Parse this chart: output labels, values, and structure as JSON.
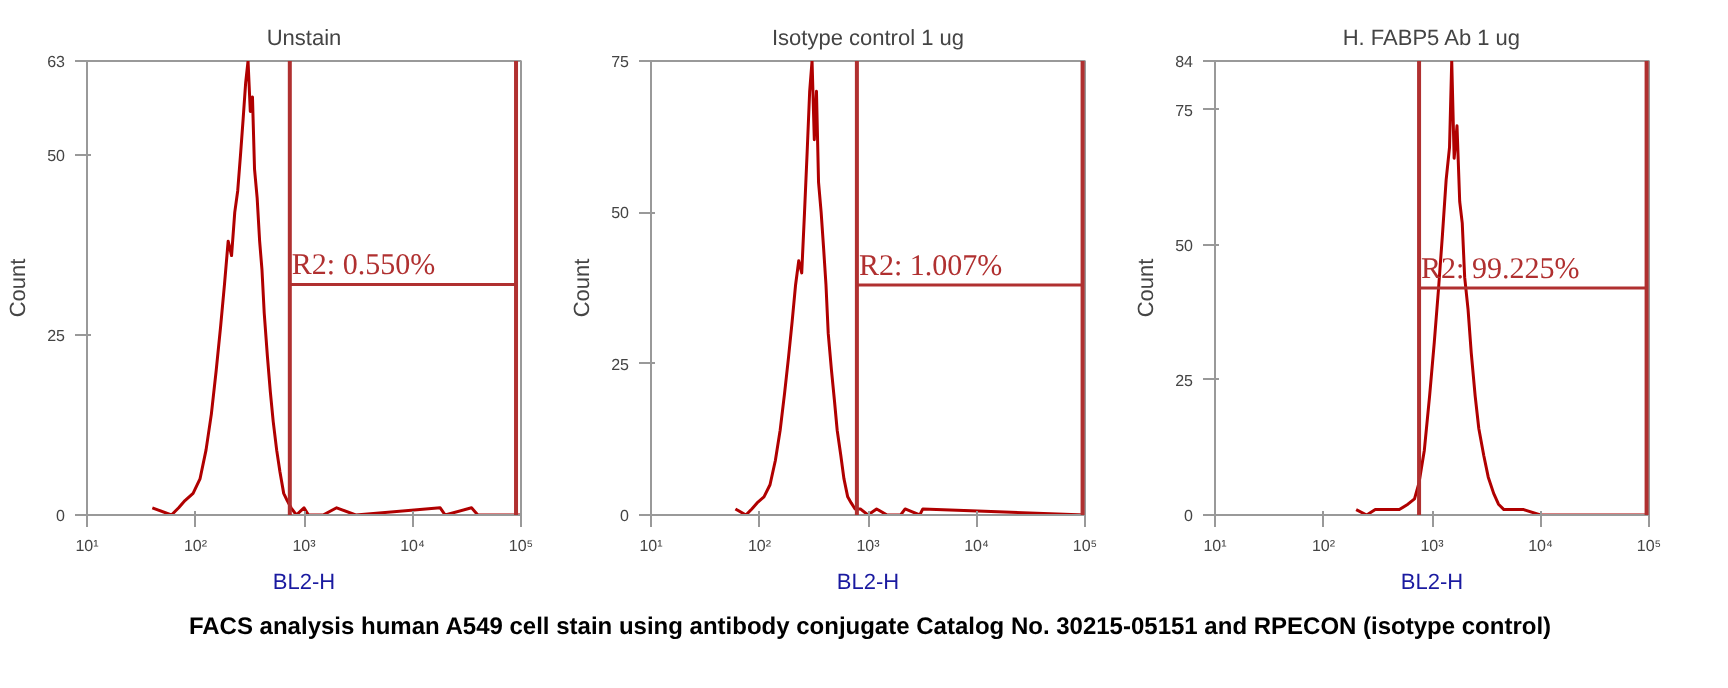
{
  "chart_data": [
    {
      "type": "line",
      "title": "Unstain",
      "xlabel": "BL2-H",
      "ylabel": "Count",
      "log": "x",
      "grid": false,
      "xlim": [
        10,
        100000
      ],
      "xticks": [
        {
          "value": 10,
          "label": "10¹"
        },
        {
          "value": 100,
          "label": "10²"
        },
        {
          "value": 1000,
          "label": "10³"
        },
        {
          "value": 10000,
          "label": "10⁴"
        },
        {
          "value": 100000,
          "label": "10⁵"
        }
      ],
      "ylim": [
        0,
        63
      ],
      "yticks": [
        0,
        25,
        50,
        63
      ],
      "series": [
        {
          "color": "#b00000",
          "x": [
            40,
            60,
            70,
            80,
            95,
            110,
            125,
            140,
            155,
            170,
            185,
            200,
            215,
            230,
            245,
            260,
            275,
            290,
            305,
            320,
            335,
            350,
            370,
            390,
            410,
            430,
            460,
            490,
            520,
            560,
            600,
            650,
            700,
            760,
            850,
            1000,
            1100,
            1500,
            2000,
            3000,
            18000,
            20000,
            35000,
            40000,
            100000
          ],
          "values": [
            1,
            0,
            1,
            2,
            3,
            5,
            9,
            14,
            20,
            26,
            32,
            38,
            36,
            42,
            45,
            50,
            55,
            60,
            63,
            56,
            58,
            48,
            44,
            38,
            34,
            28,
            22,
            17,
            13,
            9,
            6,
            3,
            2,
            1,
            0,
            1,
            0,
            0,
            1,
            0,
            1,
            0,
            1,
            0,
            0
          ]
        },
        {
          "color": "#b03030",
          "x": [
            740,
            90000
          ],
          "values": [
            32,
            32
          ]
        }
      ],
      "ref_lines": [
        {
          "axis": "x",
          "value": 740,
          "color": "#b03030"
        },
        {
          "axis": "x",
          "value": 90000,
          "color": "#b03030"
        }
      ],
      "annotations": [
        {
          "text": "R2: 0.550%",
          "x": 740,
          "y": 32
        },
        "FACS analysis human A549 cell stain using antibody conjugate Catalog No. 30215-05151 and RPECON (isotype control)"
      ]
    },
    {
      "type": "line",
      "title": "Isotype control 1 ug",
      "xlabel": "BL2-H",
      "ylabel": "Count",
      "log": "x",
      "grid": false,
      "xlim": [
        10,
        100000
      ],
      "xticks": [
        {
          "value": 10,
          "label": "10¹"
        },
        {
          "value": 100,
          "label": "10²"
        },
        {
          "value": 1000,
          "label": "10³"
        },
        {
          "value": 10000,
          "label": "10⁴"
        },
        {
          "value": 100000,
          "label": "10⁵"
        }
      ],
      "ylim": [
        0,
        75
      ],
      "yticks": [
        0,
        25,
        50,
        75
      ],
      "series": [
        {
          "color": "#b00000",
          "x": [
            60,
            75,
            85,
            95,
            110,
            125,
            140,
            155,
            170,
            185,
            200,
            215,
            230,
            245,
            260,
            275,
            290,
            305,
            320,
            335,
            350,
            370,
            390,
            410,
            430,
            460,
            490,
            520,
            560,
            600,
            650,
            700,
            760,
            850,
            1000,
            1200,
            1500,
            2000,
            2200,
            3000,
            3200,
            100000
          ],
          "values": [
            1,
            0,
            1,
            2,
            3,
            5,
            9,
            14,
            20,
            26,
            32,
            38,
            42,
            40,
            50,
            60,
            70,
            75,
            62,
            70,
            55,
            50,
            44,
            38,
            30,
            24,
            19,
            14,
            10,
            6,
            3,
            2,
            1,
            1,
            0,
            1,
            0,
            0,
            1,
            0,
            1,
            0
          ]
        },
        {
          "color": "#b03030",
          "x": [
            790,
            95000
          ],
          "values": [
            38,
            38
          ]
        }
      ],
      "ref_lines": [
        {
          "axis": "x",
          "value": 790,
          "color": "#b03030"
        },
        {
          "axis": "x",
          "value": 95000,
          "color": "#b03030"
        }
      ],
      "annotations": [
        {
          "text": "R2: 1.007%",
          "x": 790,
          "y": 38
        }
      ]
    },
    {
      "type": "line",
      "title": "H. FABP5 Ab 1 ug",
      "xlabel": "BL2-H",
      "ylabel": "Count",
      "log": "x",
      "grid": false,
      "xlim": [
        10,
        100000
      ],
      "xticks": [
        {
          "value": 10,
          "label": "10¹"
        },
        {
          "value": 100,
          "label": "10²"
        },
        {
          "value": 1000,
          "label": "10³"
        },
        {
          "value": 10000,
          "label": "10⁴"
        },
        {
          "value": 100000,
          "label": "10⁵"
        }
      ],
      "ylim": [
        0,
        84
      ],
      "yticks": [
        0,
        25,
        50,
        75,
        84
      ],
      "series": [
        {
          "color": "#b00000",
          "x": [
            200,
            250,
            300,
            400,
            500,
            600,
            690,
            760,
            850,
            950,
            1050,
            1150,
            1250,
            1350,
            1450,
            1520,
            1600,
            1700,
            1800,
            1900,
            2000,
            2150,
            2300,
            2500,
            2700,
            3000,
            3300,
            3700,
            4100,
            4600,
            5500,
            7000,
            10000,
            100000
          ],
          "values": [
            1,
            0,
            1,
            1,
            1,
            2,
            3,
            6,
            12,
            22,
            32,
            42,
            52,
            62,
            68,
            84,
            66,
            72,
            58,
            54,
            44,
            38,
            30,
            22,
            16,
            11,
            7,
            4,
            2,
            1,
            1,
            1,
            0,
            0
          ]
        },
        {
          "color": "#b03030",
          "x": [
            760,
            95000
          ],
          "values": [
            42,
            42
          ]
        }
      ],
      "ref_lines": [
        {
          "axis": "x",
          "value": 760,
          "color": "#b03030"
        },
        {
          "axis": "x",
          "value": 95000,
          "color": "#b03030"
        }
      ],
      "annotations": [
        {
          "text": "R2: 99.225%",
          "x": 760,
          "y": 42
        }
      ]
    }
  ]
}
